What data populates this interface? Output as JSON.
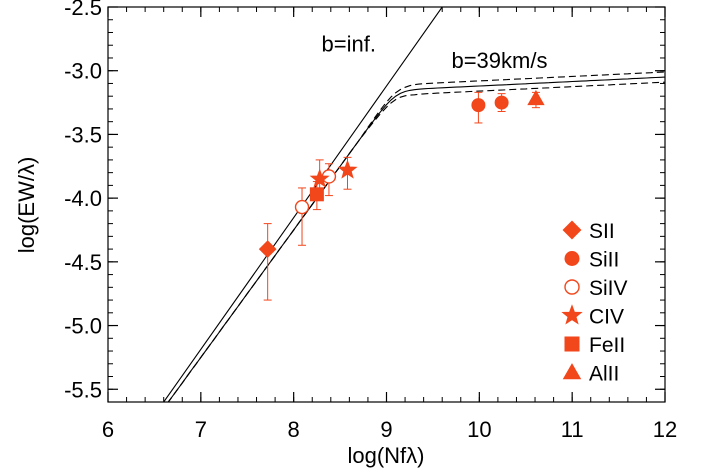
{
  "chart_data": {
    "type": "scatter",
    "title": "",
    "xlabel": "log(Nfλ)",
    "ylabel": "log(EW/λ)",
    "xlim": [
      6,
      12
    ],
    "ylim": [
      -5.6,
      -2.5
    ],
    "x_ticks": [
      6,
      7,
      8,
      9,
      10,
      11,
      12
    ],
    "x_tick_labels": [
      "6",
      "7",
      "8",
      "9",
      "10",
      "11",
      "12"
    ],
    "y_ticks": [
      -2.5,
      -3.0,
      -3.5,
      -4.0,
      -4.5,
      -5.0,
      -5.5
    ],
    "y_tick_labels": [
      "-2.5",
      "-3.0",
      "-3.5",
      "-4.0",
      "-4.5",
      "-5.0",
      "-5.5"
    ],
    "grid": false,
    "legend_position": "right",
    "marker_color": "#f2461b",
    "annotations": [
      {
        "text": "b=inf.",
        "x": 8.3,
        "y": -2.85
      },
      {
        "text": "b=39km/s",
        "x": 9.7,
        "y": -2.98
      }
    ],
    "curves": [
      {
        "kind": "linear",
        "points": [
          [
            6.6,
            -5.6
          ],
          [
            9.6,
            -2.5
          ]
        ]
      },
      {
        "kind": "saturated",
        "dash": false,
        "offset": 0.0
      },
      {
        "kind": "saturated",
        "dash": true,
        "offset": 0.04
      },
      {
        "kind": "saturated",
        "dash": true,
        "offset": -0.04
      }
    ],
    "series": [
      {
        "name": "SII",
        "marker": "diamond",
        "filled": true,
        "points": [
          {
            "x": 7.72,
            "y": -4.4,
            "yerr_lo": 0.4,
            "yerr_hi": 0.2
          }
        ]
      },
      {
        "name": "SiII",
        "marker": "circle",
        "filled": true,
        "points": [
          {
            "x": 9.99,
            "y": -3.27,
            "yerr_lo": 0.14,
            "yerr_hi": 0.1
          },
          {
            "x": 10.24,
            "y": -3.25,
            "yerr_lo": 0.07,
            "yerr_hi": 0.07
          }
        ]
      },
      {
        "name": "SiIV",
        "marker": "circle",
        "filled": false,
        "points": [
          {
            "x": 8.09,
            "y": -4.07,
            "yerr_lo": 0.3,
            "yerr_hi": 0.15
          },
          {
            "x": 8.38,
            "y": -3.83,
            "yerr_lo": 0.15,
            "yerr_hi": 0.1
          }
        ]
      },
      {
        "name": "CIV",
        "marker": "star",
        "filled": true,
        "points": [
          {
            "x": 8.28,
            "y": -3.85,
            "yerr_lo": 0.15,
            "yerr_hi": 0.15
          },
          {
            "x": 8.58,
            "y": -3.78,
            "yerr_lo": 0.15,
            "yerr_hi": 0.1
          }
        ]
      },
      {
        "name": "FeII",
        "marker": "square",
        "filled": true,
        "points": [
          {
            "x": 8.25,
            "y": -3.97,
            "yerr_lo": 0.12,
            "yerr_hi": 0.1
          }
        ]
      },
      {
        "name": "AlII",
        "marker": "triangle",
        "filled": true,
        "points": [
          {
            "x": 10.61,
            "y": -3.22,
            "yerr_lo": 0.07,
            "yerr_hi": 0.05
          }
        ]
      }
    ]
  }
}
